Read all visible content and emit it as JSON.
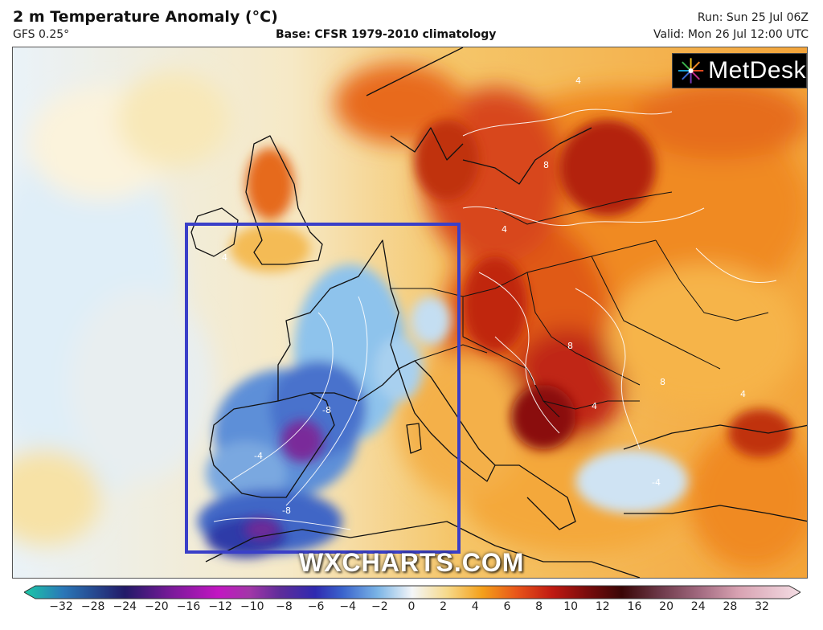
{
  "header": {
    "title": "2 m Temperature Anomaly (°C)",
    "model": "GFS 0.25°",
    "base": "Base: CFSR 1979-2010 climatology",
    "run": "Run: Sun 25 Jul 06Z",
    "valid": "Valid: Mon 26 Jul 12:00 UTC"
  },
  "brand": {
    "logo_text": "MetDesk",
    "watermark": "WXCHARTS.COM"
  },
  "colorbar": {
    "ticks": [
      "−32",
      "−28",
      "−24",
      "−20",
      "−16",
      "−12",
      "−10",
      "−8",
      "−6",
      "−4",
      "−2",
      "0",
      "2",
      "4",
      "6",
      "8",
      "10",
      "12",
      "16",
      "20",
      "24",
      "28",
      "32"
    ],
    "stops": [
      {
        "pos": 0.0,
        "color": "#1bc9a7"
      },
      {
        "pos": 0.05,
        "color": "#2a78b8"
      },
      {
        "pos": 0.13,
        "color": "#221a68"
      },
      {
        "pos": 0.19,
        "color": "#7a1a9a"
      },
      {
        "pos": 0.25,
        "color": "#c216c2"
      },
      {
        "pos": 0.29,
        "color": "#a236a8"
      },
      {
        "pos": 0.33,
        "color": "#5e2d9a"
      },
      {
        "pos": 0.375,
        "color": "#2f2ab0"
      },
      {
        "pos": 0.41,
        "color": "#3a63cc"
      },
      {
        "pos": 0.455,
        "color": "#7ab4e6"
      },
      {
        "pos": 0.5,
        "color": "#f4f6f8"
      },
      {
        "pos": 0.545,
        "color": "#f6d98a"
      },
      {
        "pos": 0.59,
        "color": "#f4a01a"
      },
      {
        "pos": 0.635,
        "color": "#e8541a"
      },
      {
        "pos": 0.68,
        "color": "#c01a12"
      },
      {
        "pos": 0.725,
        "color": "#7a0c0c"
      },
      {
        "pos": 0.77,
        "color": "#3a0606"
      },
      {
        "pos": 0.82,
        "color": "#6e3a4a"
      },
      {
        "pos": 0.87,
        "color": "#a26a80"
      },
      {
        "pos": 0.92,
        "color": "#d8a2b2"
      },
      {
        "pos": 1.0,
        "color": "#f4dde4"
      }
    ]
  },
  "map": {
    "contour_labels": [
      "4",
      "4",
      "8",
      "8",
      "4",
      "-8",
      "-8",
      "-4",
      "4",
      "8",
      "4",
      "-4"
    ],
    "highlight_box_color": "#3a3fc8",
    "land_border_color": "#111111"
  }
}
